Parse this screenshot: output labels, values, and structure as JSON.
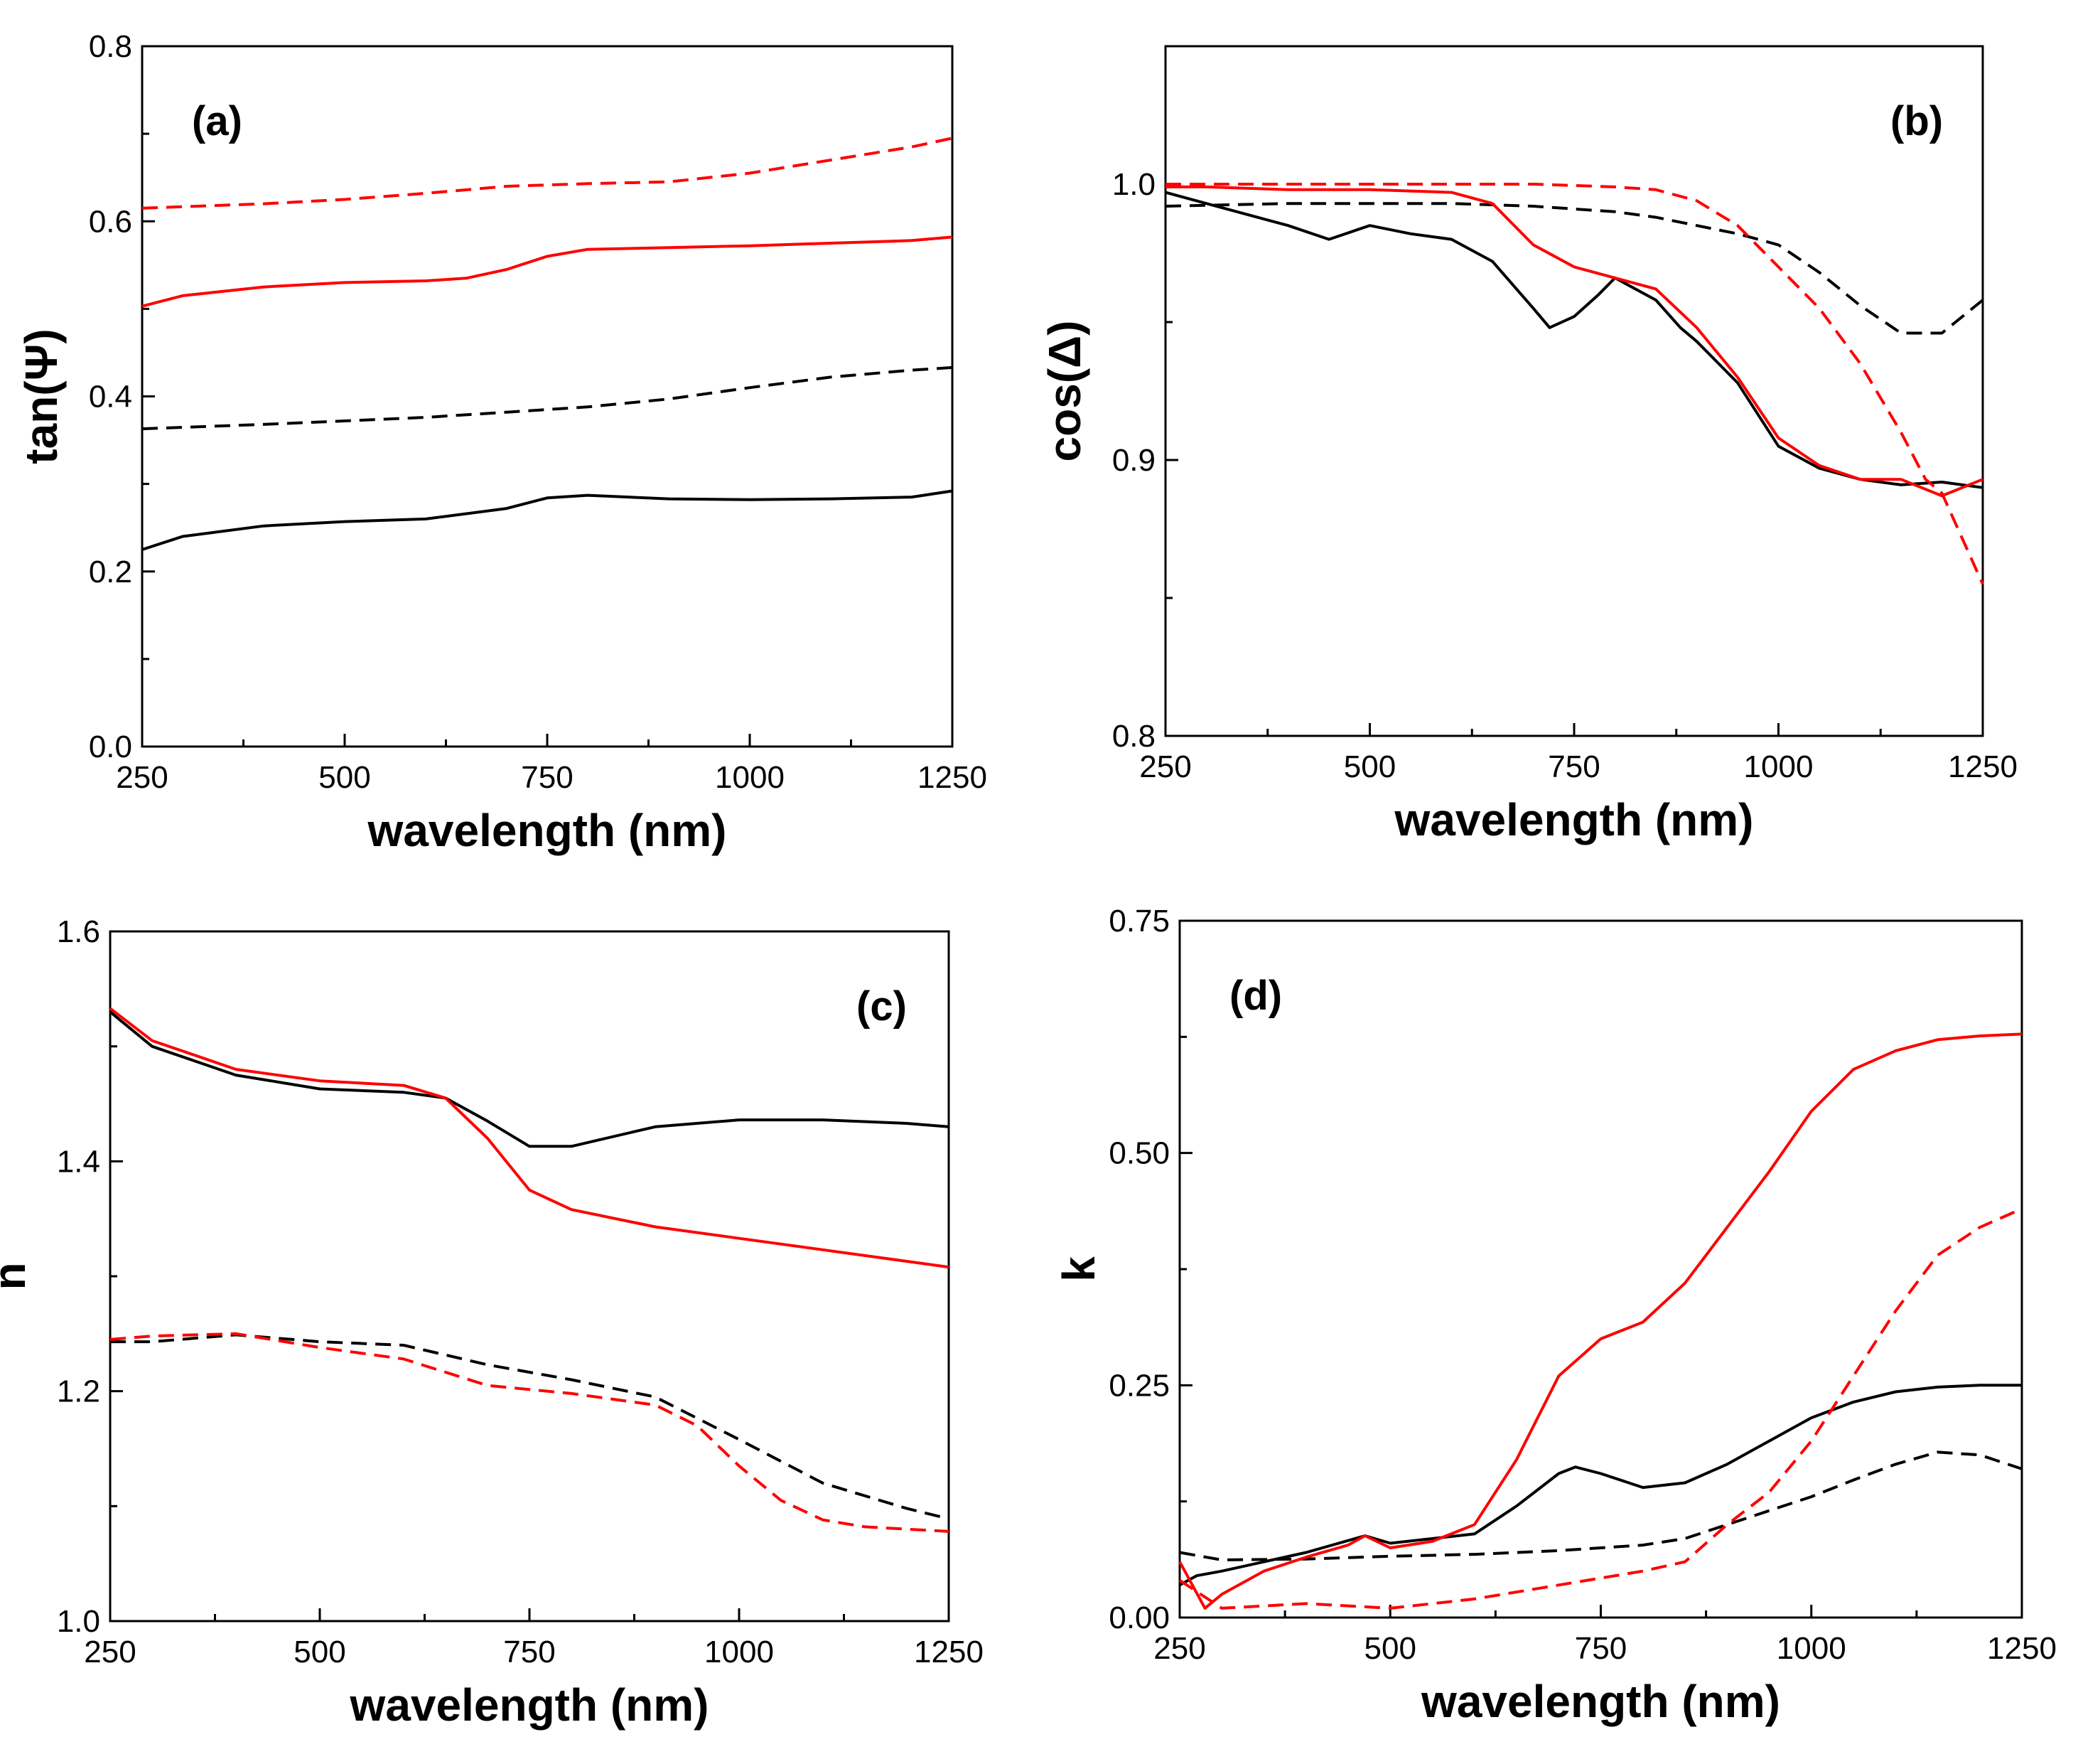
{
  "chart_data": [
    {
      "type": "line",
      "panel_label": "(a)",
      "xlabel": "wavelength (nm)",
      "ylabel": "tan(Ψ)",
      "xlim": [
        250,
        1250
      ],
      "ylim": [
        0.0,
        0.8
      ],
      "xticks": [
        250,
        500,
        750,
        1000,
        1250
      ],
      "xtick_labels": [
        "250",
        "500",
        "750",
        "1000",
        "1250"
      ],
      "yticks": [
        0.0,
        0.2,
        0.4,
        0.6,
        0.8
      ],
      "ytick_labels": [
        "0.0",
        "0.2",
        "0.4",
        "0.6",
        "0.8"
      ],
      "label_position": "top-left",
      "series": [
        {
          "name": "black solid",
          "color": "#000000",
          "dash": "solid",
          "x": [
            250,
            300,
            400,
            500,
            600,
            700,
            750,
            800,
            900,
            1000,
            1100,
            1200,
            1250
          ],
          "y": [
            0.225,
            0.24,
            0.252,
            0.257,
            0.26,
            0.272,
            0.284,
            0.287,
            0.283,
            0.282,
            0.283,
            0.285,
            0.292
          ]
        },
        {
          "name": "black dashed",
          "color": "#000000",
          "dash": "dashed",
          "x": [
            250,
            400,
            500,
            600,
            700,
            800,
            900,
            1000,
            1100,
            1200,
            1250
          ],
          "y": [
            0.363,
            0.368,
            0.372,
            0.376,
            0.382,
            0.388,
            0.397,
            0.41,
            0.422,
            0.43,
            0.433
          ]
        },
        {
          "name": "red solid",
          "color": "#ff0000",
          "dash": "solid",
          "x": [
            250,
            300,
            400,
            500,
            600,
            650,
            700,
            750,
            800,
            900,
            1000,
            1100,
            1200,
            1250
          ],
          "y": [
            0.503,
            0.515,
            0.525,
            0.53,
            0.532,
            0.535,
            0.545,
            0.56,
            0.568,
            0.57,
            0.572,
            0.575,
            0.578,
            0.582
          ]
        },
        {
          "name": "red dashed",
          "color": "#ff0000",
          "dash": "dashed",
          "x": [
            250,
            400,
            500,
            600,
            700,
            800,
            900,
            1000,
            1100,
            1200,
            1250
          ],
          "y": [
            0.615,
            0.62,
            0.625,
            0.632,
            0.64,
            0.643,
            0.645,
            0.655,
            0.67,
            0.685,
            0.695
          ]
        }
      ]
    },
    {
      "type": "line",
      "panel_label": "(b)",
      "xlabel": "wavelength (nm)",
      "ylabel": "cos(Δ)",
      "xlim": [
        250,
        1250
      ],
      "ylim": [
        0.8,
        1.05
      ],
      "xticks": [
        250,
        500,
        750,
        1000,
        1250
      ],
      "xtick_labels": [
        "250",
        "500",
        "750",
        "1000",
        "1250"
      ],
      "yticks": [
        0.8,
        0.9,
        1.0
      ],
      "ytick_labels": [
        "0.8",
        "0.9",
        "1.0"
      ],
      "label_position": "top-right",
      "series": [
        {
          "name": "black solid",
          "color": "#000000",
          "dash": "solid",
          "x": [
            250,
            300,
            400,
            450,
            500,
            550,
            600,
            650,
            700,
            720,
            750,
            780,
            800,
            850,
            880,
            900,
            950,
            1000,
            1050,
            1100,
            1150,
            1200,
            1250
          ],
          "y": [
            0.997,
            0.993,
            0.985,
            0.98,
            0.985,
            0.982,
            0.98,
            0.972,
            0.955,
            0.948,
            0.952,
            0.96,
            0.966,
            0.958,
            0.948,
            0.943,
            0.928,
            0.905,
            0.897,
            0.893,
            0.891,
            0.892,
            0.89
          ]
        },
        {
          "name": "black dashed",
          "color": "#000000",
          "dash": "dashed",
          "x": [
            250,
            400,
            500,
            600,
            700,
            800,
            850,
            900,
            950,
            1000,
            1050,
            1100,
            1150,
            1200,
            1250
          ],
          "y": [
            0.992,
            0.993,
            0.993,
            0.993,
            0.992,
            0.99,
            0.988,
            0.985,
            0.982,
            0.978,
            0.968,
            0.956,
            0.946,
            0.946,
            0.958
          ]
        },
        {
          "name": "red solid",
          "color": "#ff0000",
          "dash": "solid",
          "x": [
            250,
            300,
            400,
            500,
            600,
            650,
            700,
            750,
            800,
            850,
            900,
            950,
            1000,
            1050,
            1100,
            1150,
            1200,
            1250
          ],
          "y": [
            0.999,
            0.999,
            0.998,
            0.998,
            0.997,
            0.993,
            0.978,
            0.97,
            0.966,
            0.962,
            0.948,
            0.93,
            0.908,
            0.898,
            0.893,
            0.893,
            0.887,
            0.893
          ]
        },
        {
          "name": "red dashed",
          "color": "#ff0000",
          "dash": "dashed",
          "x": [
            250,
            400,
            500,
            600,
            700,
            800,
            850,
            900,
            950,
            1000,
            1050,
            1100,
            1150,
            1180,
            1200,
            1250
          ],
          "y": [
            1.0,
            1.0,
            1.0,
            1.0,
            1.0,
            0.999,
            0.998,
            0.994,
            0.985,
            0.97,
            0.955,
            0.935,
            0.91,
            0.893,
            0.888,
            0.855
          ]
        }
      ]
    },
    {
      "type": "line",
      "panel_label": "(c)",
      "xlabel": "wavelength (nm)",
      "ylabel": "n",
      "xlim": [
        250,
        1250
      ],
      "ylim": [
        1.0,
        1.6
      ],
      "xticks": [
        250,
        500,
        750,
        1000,
        1250
      ],
      "xtick_labels": [
        "250",
        "500",
        "750",
        "1000",
        "1250"
      ],
      "yticks": [
        1.0,
        1.2,
        1.4,
        1.6
      ],
      "ytick_labels": [
        "1.0",
        "1.2",
        "1.4",
        "1.6"
      ],
      "label_position": "top-right",
      "series": [
        {
          "name": "black solid",
          "color": "#000000",
          "dash": "solid",
          "x": [
            250,
            300,
            400,
            500,
            600,
            650,
            700,
            750,
            800,
            900,
            1000,
            1100,
            1200,
            1250
          ],
          "y": [
            1.53,
            1.5,
            1.475,
            1.463,
            1.46,
            1.455,
            1.435,
            1.413,
            1.413,
            1.43,
            1.436,
            1.436,
            1.433,
            1.43
          ]
        },
        {
          "name": "red solid",
          "color": "#ff0000",
          "dash": "solid",
          "x": [
            250,
            300,
            400,
            500,
            600,
            650,
            700,
            750,
            800,
            900,
            1000,
            1100,
            1200,
            1250
          ],
          "y": [
            1.533,
            1.505,
            1.48,
            1.47,
            1.466,
            1.455,
            1.42,
            1.375,
            1.358,
            1.343,
            1.333,
            1.323,
            1.313,
            1.308
          ]
        },
        {
          "name": "black dashed",
          "color": "#000000",
          "dash": "dashed",
          "x": [
            250,
            300,
            400,
            500,
            600,
            700,
            800,
            900,
            1000,
            1100,
            1200,
            1250
          ],
          "y": [
            1.243,
            1.243,
            1.249,
            1.243,
            1.24,
            1.223,
            1.21,
            1.195,
            1.158,
            1.12,
            1.098,
            1.089
          ]
        },
        {
          "name": "red dashed",
          "color": "#ff0000",
          "dash": "dashed",
          "x": [
            250,
            300,
            400,
            500,
            600,
            700,
            800,
            900,
            950,
            1000,
            1050,
            1100,
            1150,
            1200,
            1250
          ],
          "y": [
            1.245,
            1.248,
            1.25,
            1.238,
            1.228,
            1.205,
            1.198,
            1.188,
            1.17,
            1.135,
            1.105,
            1.088,
            1.082,
            1.08,
            1.078
          ]
        }
      ]
    },
    {
      "type": "line",
      "panel_label": "(d)",
      "xlabel": "wavelength (nm)",
      "ylabel": "k",
      "xlim": [
        250,
        1250
      ],
      "ylim": [
        0.0,
        0.75
      ],
      "xticks": [
        250,
        500,
        750,
        1000,
        1250
      ],
      "xtick_labels": [
        "250",
        "500",
        "750",
        "1000",
        "1250"
      ],
      "yticks": [
        0.0,
        0.25,
        0.5,
        0.75
      ],
      "ytick_labels": [
        "0.00",
        "0.25",
        "0.50",
        "0.75"
      ],
      "label_position": "top-left",
      "series": [
        {
          "name": "black solid",
          "color": "#000000",
          "dash": "solid",
          "x": [
            250,
            270,
            300,
            400,
            470,
            500,
            600,
            650,
            700,
            720,
            750,
            800,
            850,
            900,
            950,
            1000,
            1050,
            1100,
            1150,
            1200,
            1250
          ],
          "y": [
            0.035,
            0.045,
            0.05,
            0.07,
            0.088,
            0.08,
            0.09,
            0.12,
            0.155,
            0.162,
            0.155,
            0.14,
            0.145,
            0.165,
            0.19,
            0.215,
            0.232,
            0.243,
            0.248,
            0.25,
            0.25
          ]
        },
        {
          "name": "black dashed",
          "color": "#000000",
          "dash": "dashed",
          "x": [
            250,
            300,
            400,
            500,
            600,
            700,
            800,
            850,
            900,
            950,
            1000,
            1050,
            1100,
            1150,
            1200,
            1250
          ],
          "y": [
            0.07,
            0.062,
            0.063,
            0.066,
            0.068,
            0.072,
            0.078,
            0.085,
            0.1,
            0.115,
            0.13,
            0.148,
            0.165,
            0.178,
            0.175,
            0.16
          ]
        },
        {
          "name": "red solid",
          "color": "#ff0000",
          "dash": "solid",
          "x": [
            250,
            280,
            300,
            350,
            400,
            450,
            470,
            500,
            550,
            600,
            650,
            700,
            750,
            800,
            850,
            900,
            950,
            1000,
            1050,
            1100,
            1150,
            1200,
            1250
          ],
          "y": [
            0.06,
            0.01,
            0.025,
            0.05,
            0.065,
            0.078,
            0.088,
            0.075,
            0.082,
            0.1,
            0.17,
            0.26,
            0.3,
            0.318,
            0.36,
            0.42,
            0.48,
            0.545,
            0.59,
            0.61,
            0.622,
            0.626,
            0.628
          ]
        },
        {
          "name": "red dashed",
          "color": "#ff0000",
          "dash": "dashed",
          "x": [
            250,
            300,
            400,
            500,
            600,
            700,
            800,
            850,
            900,
            950,
            1000,
            1050,
            1100,
            1150,
            1200,
            1250
          ],
          "y": [
            0.04,
            0.01,
            0.015,
            0.01,
            0.02,
            0.035,
            0.05,
            0.06,
            0.1,
            0.135,
            0.19,
            0.26,
            0.33,
            0.39,
            0.42,
            0.44
          ]
        }
      ]
    }
  ]
}
